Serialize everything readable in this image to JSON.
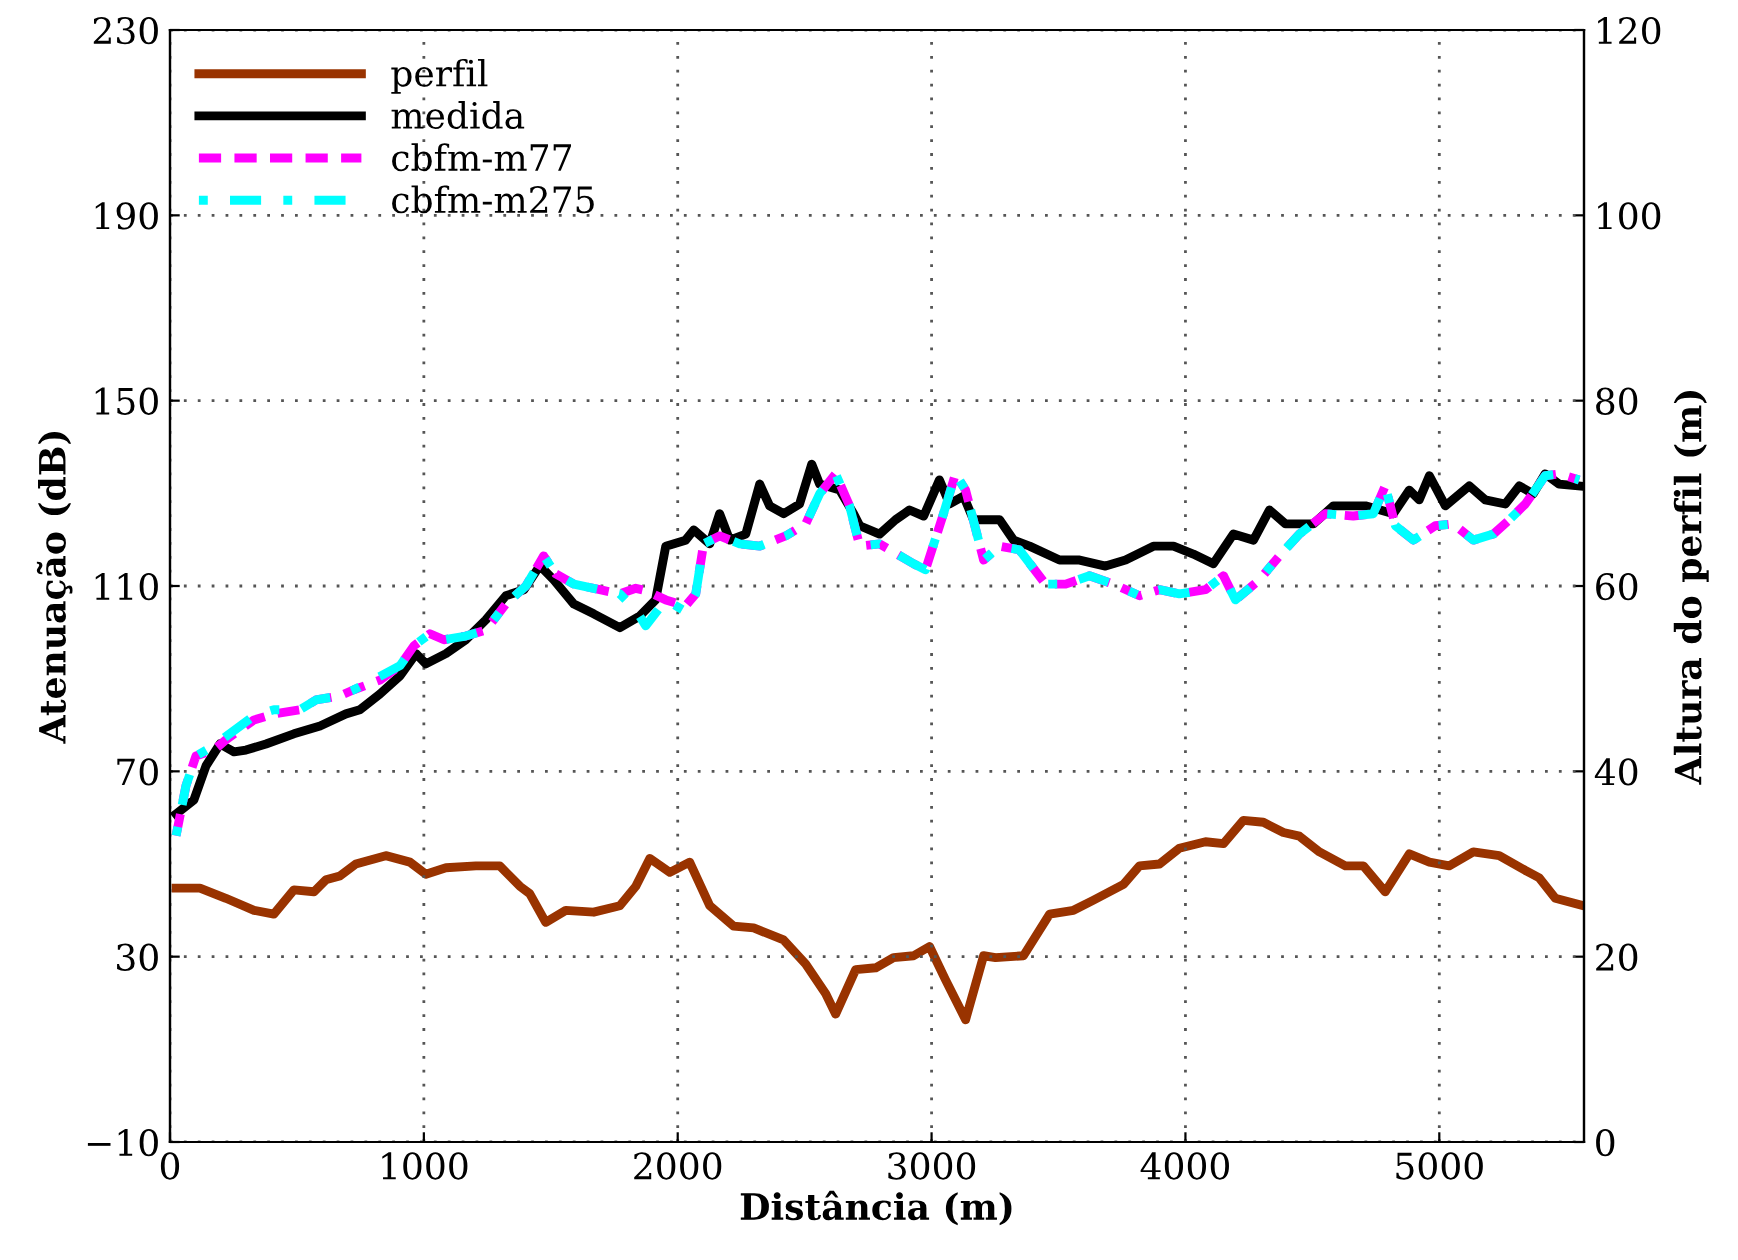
{
  "chart_data": {
    "type": "line",
    "xlabel": "Distância (m)",
    "ylabel": "Atenuação (dB)",
    "y2label": "Altura do perfil (m)",
    "xlim": [
      0,
      5570
    ],
    "xticks": [
      0,
      1000,
      2000,
      3000,
      4000,
      5000
    ],
    "ylim": [
      -10,
      230
    ],
    "yticks": [
      {
        "value": -10,
        "label": "−10"
      },
      30,
      70,
      110,
      150,
      190,
      230
    ],
    "y2lim": [
      0,
      120
    ],
    "y2ticks": [
      0,
      20,
      40,
      60,
      80,
      100,
      120
    ],
    "grid": true,
    "legend": "top left",
    "series": [
      {
        "name": "perfil",
        "color": "#993300",
        "axis": "y2",
        "line_style": "solid",
        "x": [
          24,
          118,
          220,
          331,
          409,
          488,
          567,
          614,
          669,
          732,
          850,
          945,
          1008,
          1087,
          1205,
          1299,
          1378,
          1417,
          1480,
          1559,
          1669,
          1772,
          1835,
          1890,
          1969,
          2047,
          2126,
          2220,
          2299,
          2417,
          2504,
          2583,
          2622,
          2701,
          2780,
          2850,
          2929,
          2992,
          3055,
          3134,
          3205,
          3252,
          3362,
          3465,
          3559,
          3638,
          3756,
          3819,
          3898,
          3976,
          4079,
          4150,
          4228,
          4307,
          4386,
          4449,
          4528,
          4630,
          4701,
          4787,
          4882,
          4961,
          5039,
          5134,
          5236,
          5339,
          5394,
          5457,
          5567
        ],
        "values": [
          27.4,
          27.4,
          26.3,
          25.0,
          24.6,
          27.2,
          27.0,
          28.3,
          28.7,
          30.0,
          30.9,
          30.2,
          28.9,
          29.6,
          29.8,
          29.8,
          27.6,
          26.8,
          23.7,
          25.0,
          24.8,
          25.5,
          27.6,
          30.6,
          29.1,
          30.2,
          25.5,
          23.3,
          23.1,
          21.8,
          19.2,
          16.0,
          13.8,
          18.6,
          18.8,
          19.9,
          20.1,
          21.1,
          17.5,
          13.2,
          20.1,
          19.9,
          20.1,
          24.6,
          25.0,
          26.1,
          27.8,
          29.8,
          30.0,
          31.7,
          32.4,
          32.2,
          34.7,
          34.5,
          33.4,
          33.0,
          31.3,
          29.8,
          29.8,
          27.0,
          31.1,
          30.2,
          29.8,
          31.3,
          30.9,
          29.3,
          28.5,
          26.3,
          25.5
        ]
      },
      {
        "name": "medida",
        "color": "#000000",
        "line_style": "solid",
        "x": [
          24,
          94,
          142,
          197,
          252,
          299,
          378,
          488,
          591,
          693,
          748,
          827,
          906,
          969,
          1008,
          1087,
          1165,
          1244,
          1323,
          1394,
          1457,
          1512,
          1591,
          1669,
          1772,
          1850,
          1913,
          1953,
          2031,
          2063,
          2126,
          2165,
          2205,
          2268,
          2323,
          2362,
          2417,
          2480,
          2528,
          2559,
          2638,
          2693,
          2717,
          2795,
          2858,
          2913,
          2969,
          3031,
          3071,
          3126,
          3165,
          3268,
          3323,
          3386,
          3504,
          3583,
          3685,
          3764,
          3874,
          3953,
          4031,
          4110,
          4189,
          4268,
          4331,
          4394,
          4504,
          4583,
          4709,
          4819,
          4882,
          4921,
          4961,
          5024,
          5118,
          5181,
          5260,
          5315,
          5370,
          5417,
          5472,
          5551
        ],
        "values": [
          60.8,
          63.8,
          71.2,
          75.9,
          74.2,
          74.6,
          75.9,
          78.1,
          79.8,
          82.4,
          83.3,
          86.7,
          90.6,
          95.4,
          93.2,
          95.4,
          98.4,
          102.7,
          107.9,
          109.2,
          114.4,
          111.3,
          106.1,
          104.0,
          101.0,
          103.5,
          107.0,
          118.6,
          119.9,
          122.1,
          119.1,
          125.6,
          119.9,
          121.2,
          132.0,
          127.3,
          125.6,
          127.7,
          136.3,
          132.0,
          130.7,
          125.6,
          123.0,
          121.2,
          124.3,
          126.4,
          125.1,
          132.9,
          127.7,
          129.4,
          124.3,
          124.3,
          119.9,
          118.6,
          115.6,
          115.6,
          114.3,
          115.6,
          118.6,
          118.6,
          116.9,
          114.8,
          121.2,
          119.9,
          126.4,
          123.4,
          123.4,
          127.3,
          127.3,
          125.6,
          130.7,
          128.6,
          133.8,
          127.3,
          131.6,
          128.6,
          127.7,
          131.6,
          129.9,
          134.2,
          132.0,
          131.6
        ]
      },
      {
        "name": "cbfm-m77",
        "color": "#ff00ff",
        "line_style": "dashed",
        "x": [
          24,
          63,
          102,
          173,
          220,
          331,
          409,
          512,
          575,
          669,
          724,
          827,
          906,
          961,
          1024,
          1079,
          1165,
          1244,
          1323,
          1402,
          1472,
          1520,
          1591,
          1693,
          1772,
          1835,
          1874,
          1953,
          2031,
          2071,
          2102,
          2165,
          2244,
          2323,
          2425,
          2504,
          2559,
          2622,
          2677,
          2717,
          2795,
          2929,
          2976,
          3047,
          3094,
          3134,
          3205,
          3268,
          3346,
          3449,
          3528,
          3622,
          3717,
          3819,
          3898,
          3976,
          4079,
          4150,
          4197,
          4291,
          4370,
          4449,
          4551,
          4661,
          4740,
          4787,
          4827,
          4898,
          4984,
          5055,
          5134,
          5213,
          5276,
          5339,
          5417,
          5472,
          5551
        ],
        "values": [
          56.1,
          66.9,
          73.3,
          74.6,
          76.8,
          81.1,
          82.4,
          83.3,
          85.4,
          86.3,
          87.6,
          89.7,
          92.8,
          97.1,
          99.7,
          98.4,
          99.2,
          100.5,
          106.1,
          110.0,
          116.5,
          112.6,
          110.4,
          109.2,
          108.3,
          109.5,
          109.0,
          107.0,
          105.7,
          108.3,
          119.1,
          120.8,
          119.1,
          118.6,
          120.8,
          123.4,
          129.9,
          134.2,
          127.3,
          118.6,
          119.1,
          114.8,
          113.5,
          125.6,
          134.2,
          130.7,
          115.6,
          118.6,
          117.8,
          110.4,
          110.4,
          112.2,
          110.4,
          107.9,
          109.2,
          108.3,
          109.2,
          112.2,
          107.0,
          111.3,
          116.5,
          121.2,
          125.6,
          125.1,
          125.6,
          131.6,
          123.0,
          119.9,
          123.0,
          123.4,
          119.9,
          121.2,
          124.3,
          127.7,
          133.8,
          134.2,
          132.9
        ]
      },
      {
        "name": "cbfm-m275",
        "color": "#00ffff",
        "line_style": "dashdot",
        "x": [
          24,
          63,
          102,
          173,
          220,
          331,
          409,
          512,
          575,
          669,
          724,
          827,
          906,
          961,
          1024,
          1079,
          1165,
          1244,
          1323,
          1402,
          1472,
          1520,
          1591,
          1693,
          1772,
          1835,
          1874,
          1953,
          2031,
          2071,
          2102,
          2165,
          2244,
          2323,
          2425,
          2504,
          2559,
          2622,
          2677,
          2717,
          2795,
          2929,
          2976,
          3047,
          3094,
          3134,
          3205,
          3268,
          3346,
          3449,
          3528,
          3622,
          3717,
          3819,
          3898,
          3976,
          4079,
          4150,
          4197,
          4291,
          4370,
          4449,
          4551,
          4661,
          4740,
          4787,
          4827,
          4898,
          4984,
          5055,
          5134,
          5213,
          5276,
          5339,
          5417,
          5472,
          5551
        ],
        "values": [
          56.1,
          66.9,
          73.3,
          75.5,
          77.5,
          82.0,
          83.3,
          83.3,
          85.4,
          86.3,
          87.6,
          90.5,
          92.8,
          97.1,
          99.7,
          98.4,
          99.2,
          100.5,
          106.1,
          110.0,
          116.5,
          112.6,
          110.4,
          109.2,
          108.3,
          104.8,
          101.4,
          107.0,
          104.5,
          108.3,
          119.1,
          120.8,
          119.1,
          118.6,
          120.8,
          123.4,
          129.9,
          134.2,
          127.3,
          118.6,
          119.1,
          114.8,
          113.5,
          125.6,
          134.2,
          130.7,
          115.6,
          118.6,
          117.8,
          110.4,
          110.4,
          112.2,
          110.4,
          107.9,
          109.2,
          108.3,
          109.2,
          112.2,
          107.0,
          111.3,
          116.5,
          121.2,
          125.6,
          125.1,
          125.6,
          131.6,
          123.0,
          119.9,
          123.0,
          123.4,
          119.9,
          121.2,
          124.3,
          127.7,
          133.8,
          134.2,
          132.9
        ]
      }
    ]
  }
}
